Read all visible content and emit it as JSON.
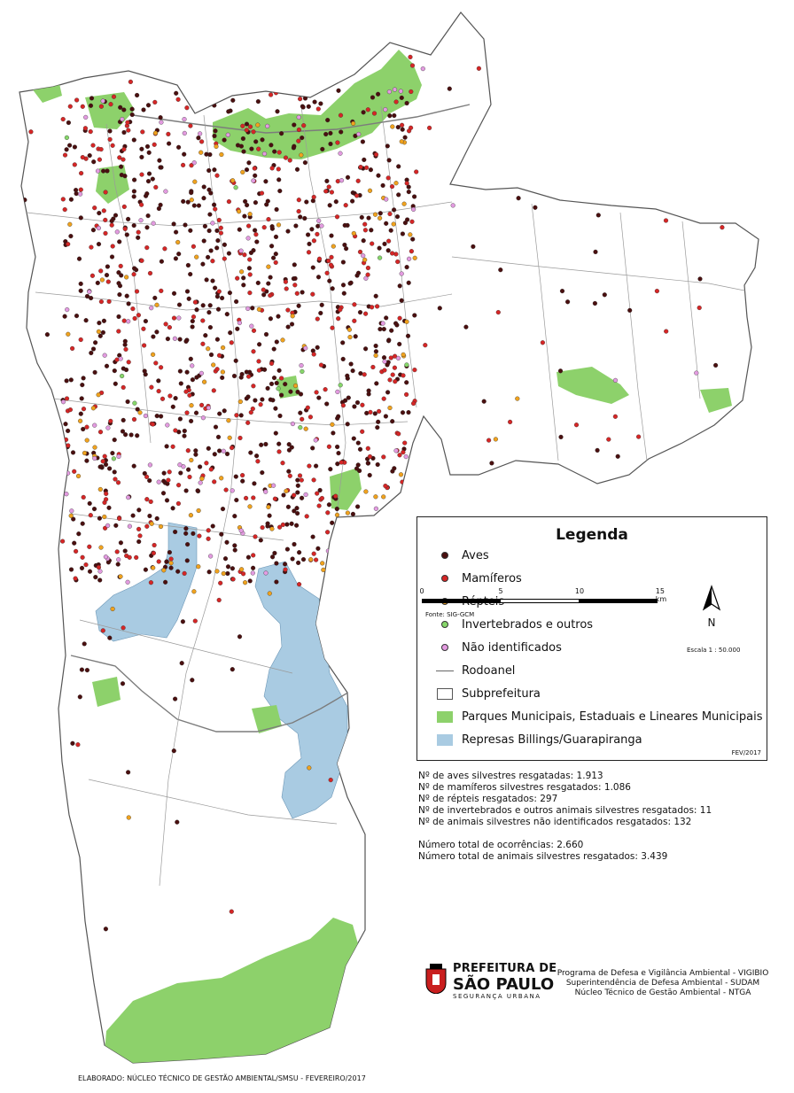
{
  "legend": {
    "title": "Legenda",
    "items": [
      {
        "label": "Aves",
        "symbol": "dot",
        "color": "#4a0f0f"
      },
      {
        "label": "Mamíferos",
        "symbol": "dot",
        "color": "#d62626"
      },
      {
        "label": "Répteis",
        "symbol": "dot",
        "color": "#f0a21e"
      },
      {
        "label": "Invertebrados e outros",
        "symbol": "dot",
        "color": "#86d66a"
      },
      {
        "label": "Não identificados",
        "symbol": "dot",
        "color": "#e39be0"
      },
      {
        "label": "Rodoanel",
        "symbol": "line",
        "color": "#8a8a8a"
      },
      {
        "label": "Subprefeitura",
        "symbol": "box",
        "color": "#ffffff"
      },
      {
        "label": "Parques Municipais, Estaduais e Lineares Municipais",
        "symbol": "box",
        "color": "#8dd16b"
      },
      {
        "label": "Represas Billings/Guarapiranga",
        "symbol": "box",
        "color": "#a9cbe2"
      }
    ],
    "date": "FEV/2017"
  },
  "stats": {
    "line1": "Nº de aves silvestres resgatadas: 1.913",
    "line2": "Nº de mamíferos silvestres resgatados: 1.086",
    "line3": "Nº de répteis resgatados: 297",
    "line4": "Nº de invertebrados e outros animais silvestres resgatados: 11",
    "line5": "Nº de animais silvestres não identificados resgatados: 132",
    "line6": "Número total de ocorrências: 2.660",
    "line7": "Número total de animais silvestres resgatados: 3.439"
  },
  "scale": {
    "ticks": [
      "0",
      "5",
      "10",
      "15 km"
    ],
    "source": "Fonte: SIG-GCM",
    "ratio": "Escala 1 : 50.000",
    "north": "N"
  },
  "logo": {
    "line1": "PREFEITURA DE",
    "line2": "SÃO PAULO",
    "line3": "SEGURANÇA URBANA"
  },
  "programs": {
    "line1": "Programa de Defesa e Vigilância Ambiental - VIGIBIO",
    "line2": "Superintendência de Defesa Ambiental - SUDAM",
    "line3": "Núcleo Técnico de Gestão Ambiental - NTGA"
  },
  "footer": "ELABORADO: NÚCLEO TÉCNICO DE GESTÃO AMBIENTAL/SMSU - FEVEREIRO/2017",
  "counts": {
    "aves": 1913,
    "mamiferos": 1086,
    "repteis": 297,
    "invertebrados": 11,
    "nao_identificados": 132
  }
}
